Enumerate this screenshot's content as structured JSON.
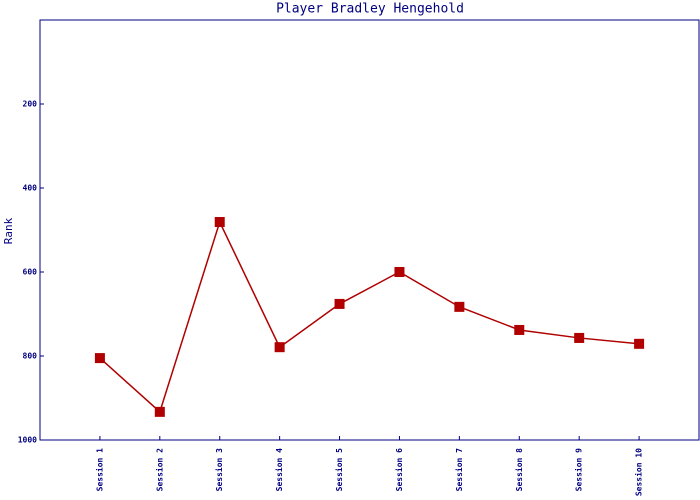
{
  "chart_data": {
    "type": "line",
    "title": "Player Bradley Hengehold",
    "y_label": "Rank",
    "categories": [
      "Session 1",
      "Session 2",
      "Session 3",
      "Session 4",
      "Session 5",
      "Session 6",
      "Session 7",
      "Session 8",
      "Session 9",
      "Session 10"
    ],
    "series": [
      {
        "name": "Rank",
        "color": "#b00000",
        "values": [
          805,
          933,
          481,
          779,
          676,
          600,
          683,
          738,
          757,
          771
        ]
      }
    ],
    "ylim": [
      0,
      1000
    ],
    "yticks": [
      200,
      400,
      600,
      800,
      1000
    ],
    "y_reversed": true,
    "grid": false
  }
}
